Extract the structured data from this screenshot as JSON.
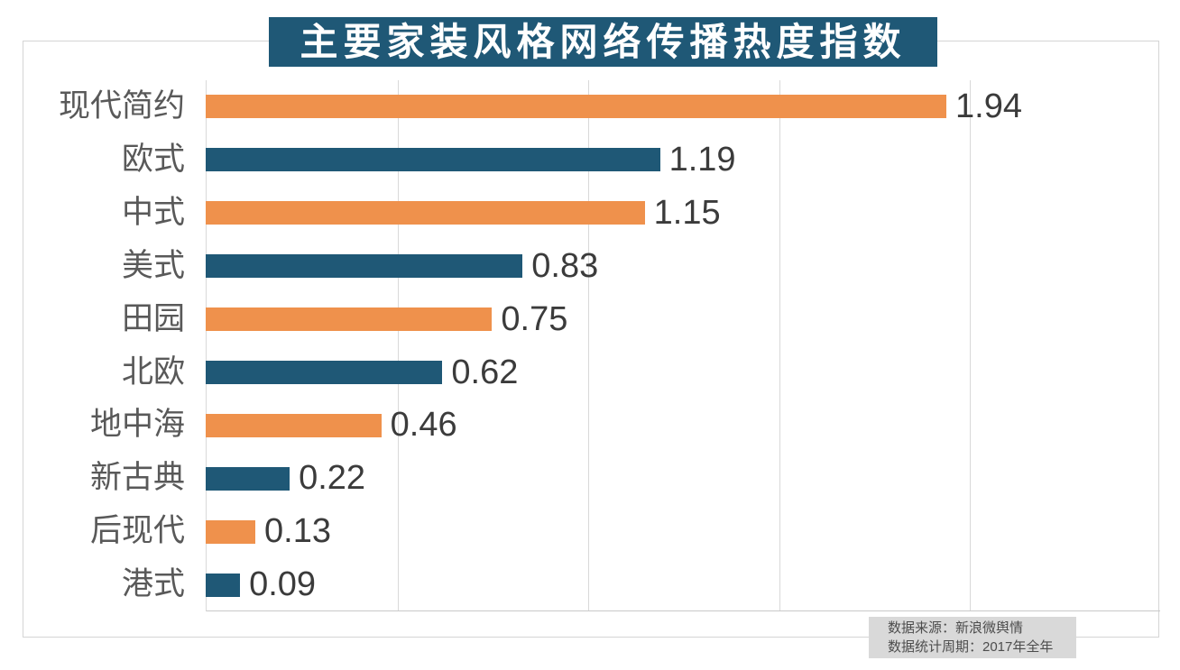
{
  "title": "主要家装风格网络传播热度指数",
  "chart_data": {
    "type": "bar",
    "orientation": "horizontal",
    "title": "主要家装风格网络传播热度指数",
    "categories": [
      "现代简约",
      "欧式",
      "中式",
      "美式",
      "田园",
      "北欧",
      "地中海",
      "新古典",
      "后现代",
      "港式"
    ],
    "values": [
      1.94,
      1.19,
      1.15,
      0.83,
      0.75,
      0.62,
      0.46,
      0.22,
      0.13,
      0.09
    ],
    "value_labels": [
      "1.94",
      "1.19",
      "1.15",
      "0.83",
      "0.75",
      "0.62",
      "0.46",
      "0.22",
      "0.13",
      "0.09"
    ],
    "xlabel": "",
    "ylabel": "",
    "xlim": [
      0,
      2.5
    ],
    "gridline_step": 0.5,
    "grid": true,
    "legend": false,
    "bar_colors_alternating": [
      "#ef914c",
      "#1f5876"
    ]
  },
  "colors": {
    "banner_bg": "#1f5876",
    "banner_text": "#ffffff",
    "orange_bar": "#ef914c",
    "teal_bar": "#1f5876",
    "category_text": "#595959",
    "value_text": "#3b3b3b",
    "gridline": "#d9d9d9",
    "frame_border": "#d5d5d5",
    "footer_bg": "#d9d9d9",
    "footer_text": "#4d4d4d"
  },
  "footer": {
    "source": "数据来源：新浪微舆情",
    "period": "数据统计周期：2017年全年"
  }
}
